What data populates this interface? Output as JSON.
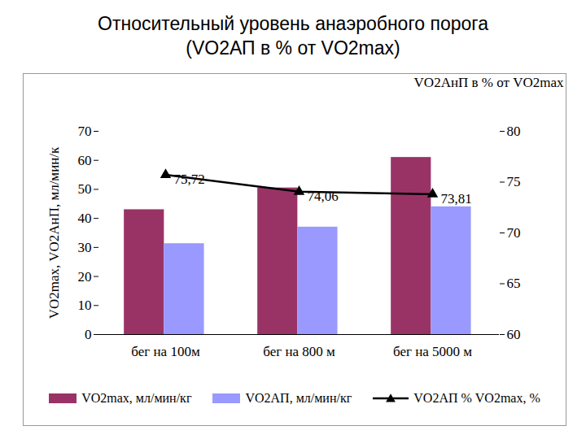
{
  "chart_data": {
    "type": "bar",
    "title": "Относительный уровень анаэробного порога",
    "subtitle": "(VO2АП в % от VO2max)",
    "y_label": "VO2max, VO2АнП, мл/мин/к",
    "y2_label": "VO2АнП в % от VO2max",
    "categories": [
      "бег на 100м",
      "бег на 800 м",
      "бег на 5000 м"
    ],
    "series": [
      {
        "name": "VO2max, мл/мин/кг",
        "type": "bar",
        "color": "#993366",
        "values": [
          43,
          50.5,
          61
        ]
      },
      {
        "name": "VO2АП, мл/мин/кг",
        "type": "bar",
        "color": "#9999ff",
        "values": [
          31.3,
          37,
          44
        ]
      },
      {
        "name": "VO2АП % VO2max, %",
        "type": "line",
        "axis": "y2",
        "color": "#000000",
        "marker": "triangle",
        "values": [
          75.72,
          74.06,
          73.81
        ],
        "value_labels": [
          "75,72",
          "74,06",
          "73,81"
        ],
        "data_labels": true
      }
    ],
    "ylim": [
      0,
      70
    ],
    "yticks": [
      0,
      10,
      20,
      30,
      40,
      50,
      60,
      70
    ],
    "y2lim": [
      60,
      80
    ],
    "y2ticks": [
      60,
      65,
      70,
      75,
      80
    ],
    "legend": "bottom"
  }
}
